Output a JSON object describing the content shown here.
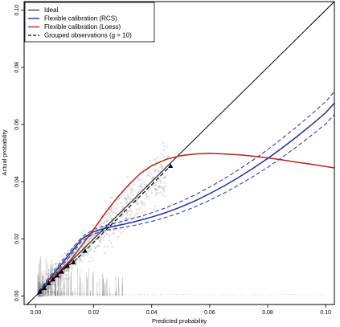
{
  "chart_data": {
    "type": "line",
    "xlabel": "Predicted probability",
    "ylabel": "Actual probability",
    "xlim": [
      -0.004,
      0.103
    ],
    "ylim": [
      -0.003,
      0.103
    ],
    "xticks": [
      0.0,
      0.02,
      0.04,
      0.06,
      0.08,
      0.1
    ],
    "xtick_labels": [
      "0.00",
      "0.02",
      "0.04",
      "0.06",
      "0.08",
      "0.10"
    ],
    "yticks": [
      0.0,
      0.02,
      0.04,
      0.06,
      0.08,
      0.1
    ],
    "ytick_labels": [
      "0.00",
      "0.02",
      "0.04",
      "0.06",
      "0.08",
      "0.10"
    ],
    "legend_position": "top-left",
    "legend": [
      {
        "label": "Ideal",
        "color": "#000000",
        "style": "solid"
      },
      {
        "label": "Flexible calibration (RCS)",
        "color": "#1f2f9e",
        "style": "solid"
      },
      {
        "label": "Flexible calibration (Loess)",
        "color": "#b5231e",
        "style": "solid"
      },
      {
        "label": "Grouped observations (g = 10)",
        "color": "#000000",
        "style": "dashed"
      }
    ],
    "series": [
      {
        "key": "ideal",
        "color": "#000000",
        "x": [
          -0.004,
          0.103
        ],
        "y": [
          -0.004,
          0.103
        ]
      },
      {
        "key": "rcs",
        "color": "#1f2f9e",
        "x": [
          0.001,
          0.004,
          0.008,
          0.012,
          0.016,
          0.02,
          0.025,
          0.03,
          0.035,
          0.04,
          0.045,
          0.05,
          0.055,
          0.06,
          0.065,
          0.07,
          0.075,
          0.08,
          0.085,
          0.09,
          0.095,
          0.1,
          0.103
        ],
        "y": [
          0.001,
          0.005,
          0.01,
          0.015,
          0.02,
          0.0225,
          0.024,
          0.025,
          0.0262,
          0.0276,
          0.0292,
          0.0311,
          0.0333,
          0.0358,
          0.0385,
          0.0415,
          0.0447,
          0.0481,
          0.0518,
          0.0557,
          0.0598,
          0.0641,
          0.0675
        ]
      },
      {
        "key": "rcs_upper",
        "color": "#1f2f9e",
        "x": [
          0.001,
          0.004,
          0.008,
          0.012,
          0.016,
          0.02,
          0.025,
          0.03,
          0.035,
          0.04,
          0.045,
          0.05,
          0.055,
          0.06,
          0.065,
          0.07,
          0.075,
          0.08,
          0.085,
          0.09,
          0.095,
          0.1,
          0.103
        ],
        "y": [
          0.0015,
          0.0057,
          0.0109,
          0.0159,
          0.0207,
          0.0233,
          0.0249,
          0.0261,
          0.0275,
          0.0291,
          0.0309,
          0.033,
          0.0354,
          0.0381,
          0.041,
          0.0442,
          0.0476,
          0.0512,
          0.0551,
          0.0592,
          0.0635,
          0.068,
          0.0715
        ]
      },
      {
        "key": "rcs_lower",
        "color": "#1f2f9e",
        "x": [
          0.001,
          0.004,
          0.008,
          0.012,
          0.016,
          0.02,
          0.025,
          0.03,
          0.035,
          0.04,
          0.045,
          0.05,
          0.055,
          0.06,
          0.065,
          0.07,
          0.075,
          0.08,
          0.085,
          0.09,
          0.095,
          0.1,
          0.103
        ],
        "y": [
          0.0005,
          0.0043,
          0.0091,
          0.0141,
          0.0193,
          0.0217,
          0.0231,
          0.0239,
          0.0249,
          0.0261,
          0.0275,
          0.0292,
          0.0312,
          0.0335,
          0.036,
          0.0388,
          0.0418,
          0.045,
          0.0485,
          0.0522,
          0.0561,
          0.0602,
          0.0635
        ]
      },
      {
        "key": "loess",
        "color": "#b5231e",
        "x": [
          0.004,
          0.008,
          0.012,
          0.015,
          0.018,
          0.021,
          0.024,
          0.028,
          0.032,
          0.036,
          0.04,
          0.045,
          0.05,
          0.055,
          0.06,
          0.065,
          0.07,
          0.075,
          0.08,
          0.085,
          0.09,
          0.095,
          0.1,
          0.103
        ],
        "y": [
          0.005,
          0.0085,
          0.0125,
          0.0165,
          0.0205,
          0.0248,
          0.029,
          0.0343,
          0.0388,
          0.0428,
          0.0456,
          0.0478,
          0.0491,
          0.0497,
          0.0499,
          0.0497,
          0.0494,
          0.0489,
          0.0483,
          0.0476,
          0.0468,
          0.0461,
          0.0453,
          0.0448
        ]
      },
      {
        "key": "grouped",
        "color": "#000000",
        "x": [
          0.0015,
          0.003,
          0.0045,
          0.006,
          0.0075,
          0.009,
          0.011,
          0.013,
          0.017,
          0.0465
        ],
        "y": [
          0.0015,
          0.0028,
          0.0045,
          0.0058,
          0.0072,
          0.0085,
          0.0105,
          0.0118,
          0.0158,
          0.0455
        ]
      }
    ]
  }
}
